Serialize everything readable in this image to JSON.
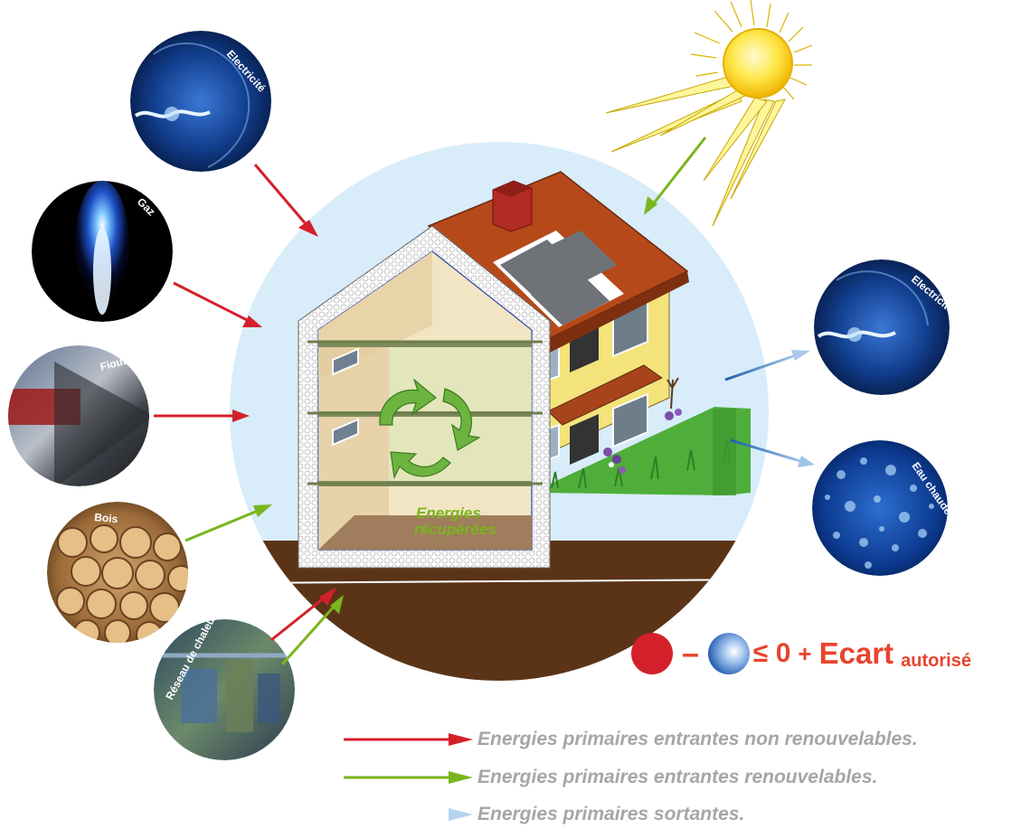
{
  "sources": {
    "electricite": "Electricité",
    "gaz": "Gaz",
    "fioul": "Fioul",
    "bois": "Bois",
    "reseau": "Réseau de chaleur"
  },
  "outputs": {
    "electricite": "Electricité",
    "eau_chaude": "Eau chaude"
  },
  "house": {
    "recovered_line1": "Energies",
    "recovered_line2": "récupérées"
  },
  "formula": {
    "minus": "–",
    "leq_zero": "≤ 0",
    "plus": "+",
    "ecart": "Ecart",
    "autorise": "autorisé"
  },
  "legend": [
    {
      "label": "Energies primaires entrantes non renouvelables.",
      "color": "#d4202a"
    },
    {
      "label": "Energies primaires entrantes renouvelables.",
      "color": "#7ab51d"
    },
    {
      "label": "Energies primaires sortantes.",
      "color": "#1e5fa8"
    }
  ],
  "colors": {
    "non_renewable": "#d4202a",
    "renewable": "#7ab51d",
    "outgoing": "#1e5fa8",
    "formula_text": "#e8442e",
    "legend_text": "#a6a6a6"
  }
}
